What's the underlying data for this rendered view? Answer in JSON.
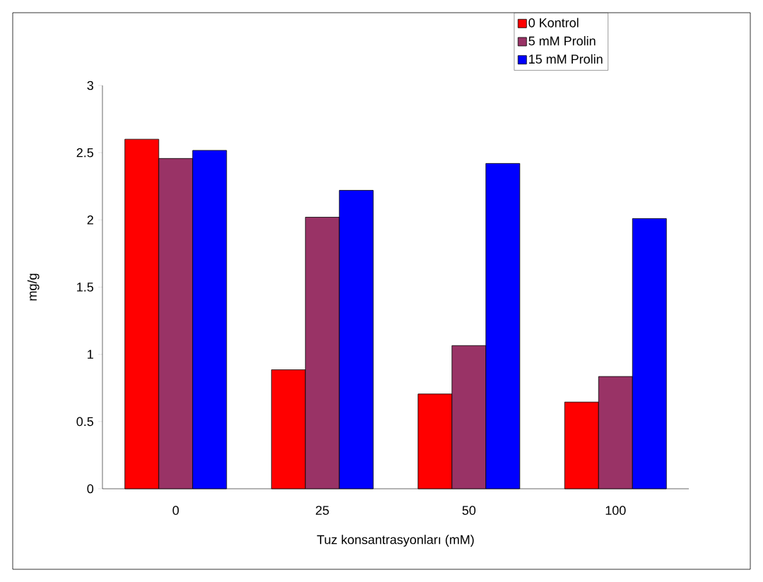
{
  "chart_data": {
    "type": "bar",
    "xlabel": "Tuz konsantrasyonları (mM)",
    "ylabel": "mg/g",
    "categories": [
      "0",
      "25",
      "50",
      "100"
    ],
    "series": [
      {
        "name": "0 Kontrol",
        "color": "#ff0000",
        "values": [
          2.6,
          0.885,
          0.705,
          0.645
        ]
      },
      {
        "name": "5 mM Prolin",
        "color": "#993366",
        "values": [
          2.457,
          2.02,
          1.065,
          0.835
        ]
      },
      {
        "name": "15 mM Prolin",
        "color": "#0000ff",
        "values": [
          2.517,
          2.22,
          2.42,
          2.01
        ]
      }
    ],
    "ylim": [
      0,
      3
    ],
    "yticks": [
      0,
      0.5,
      1,
      1.5,
      2,
      2.5,
      3
    ],
    "grid": false,
    "legend": "top right"
  }
}
